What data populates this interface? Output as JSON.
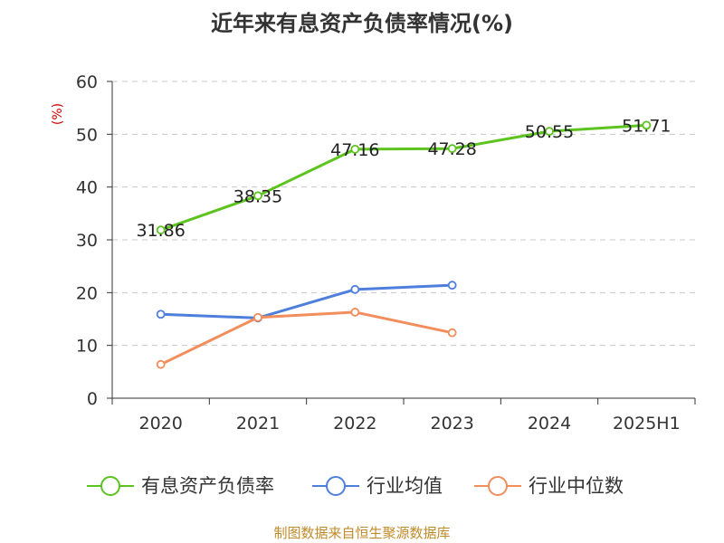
{
  "title": "近年来有息资产负债率情况(%)",
  "source": "制图数据来自恒生聚源数据库",
  "colors": {
    "series1": "#5cc31f",
    "series2": "#4f7fdc",
    "series3": "#f28d5c",
    "unit": "#cc0000",
    "source": "#c08a2a",
    "grid": "#c8c8c8",
    "axis": "#333333"
  },
  "chart_data": {
    "type": "line",
    "unit_label": "(%)",
    "categories": [
      "2020",
      "2021",
      "2022",
      "2023",
      "2024",
      "2025H1"
    ],
    "ylim": [
      0,
      60
    ],
    "yticks": [
      0,
      10,
      20,
      30,
      40,
      50,
      60
    ],
    "grid": true,
    "legend_position": "bottom",
    "series": [
      {
        "name": "有息资产负债率",
        "values": [
          31.86,
          38.35,
          47.16,
          47.28,
          50.55,
          51.71
        ],
        "labels": [
          "31.86",
          "38.35",
          "47.16",
          "47.28",
          "50.55",
          "51.71"
        ]
      },
      {
        "name": "行业均值",
        "values": [
          15.9,
          15.2,
          20.6,
          21.4,
          null,
          null
        ]
      },
      {
        "name": "行业中位数",
        "values": [
          6.4,
          15.3,
          16.3,
          12.4,
          null,
          null
        ]
      }
    ]
  }
}
